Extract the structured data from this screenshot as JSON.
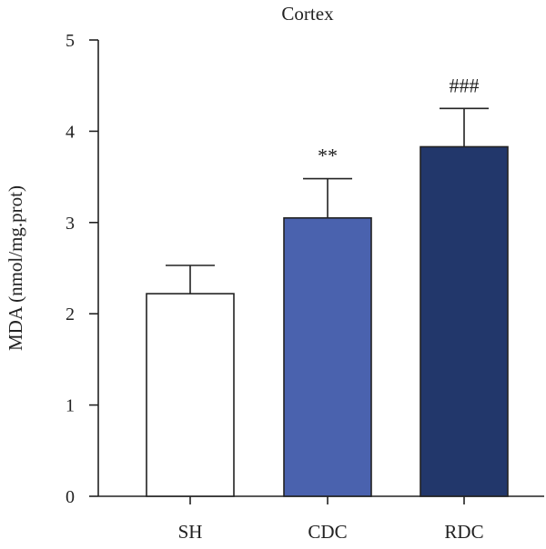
{
  "chart_data": {
    "type": "bar",
    "title": "Cortex",
    "xlabel": "",
    "ylabel": "MDA (nmol/mg.prot)",
    "ylim": [
      0,
      5
    ],
    "yticks": [
      0,
      1,
      2,
      3,
      4,
      5
    ],
    "grid": false,
    "categories": [
      "SH",
      "CDC",
      "RDC"
    ],
    "values": [
      2.22,
      3.05,
      3.83
    ],
    "errors": [
      0.31,
      0.43,
      0.42
    ],
    "annotations": [
      "",
      "**",
      "###"
    ],
    "colors": [
      "#ffffff",
      "#4a62ae",
      "#22376b"
    ]
  }
}
